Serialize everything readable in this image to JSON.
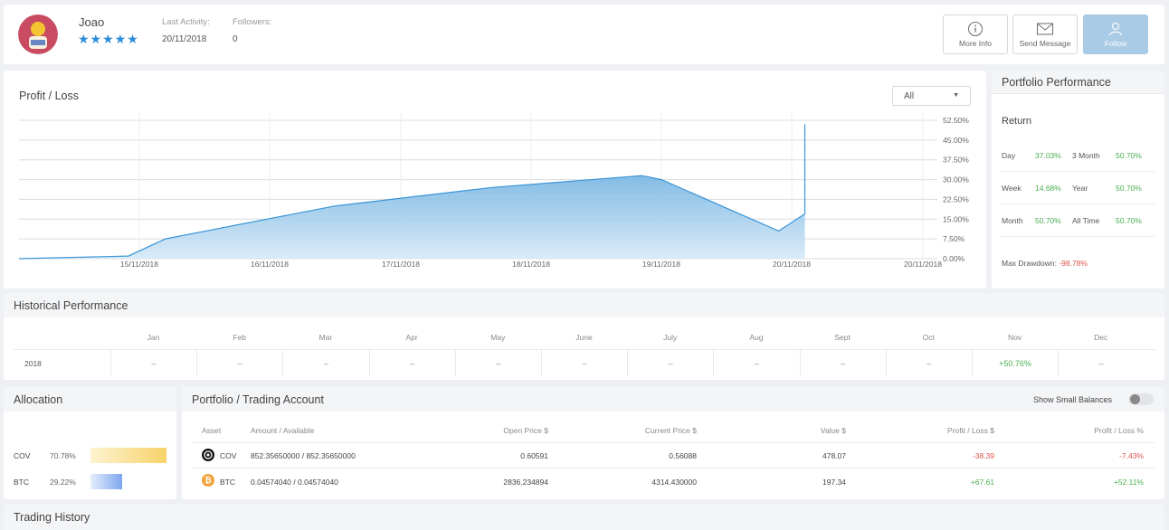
{
  "header": {
    "username": "Joao",
    "stars": "★★★★★",
    "last_activity_label": "Last Activity:",
    "last_activity_value": "20/11/2018",
    "followers_label": "Followers:",
    "followers_value": "0",
    "buttons": {
      "more_info": "More Info",
      "send_message": "Send Message",
      "follow": "Follow"
    }
  },
  "profit_loss": {
    "title": "Profit / Loss",
    "filter_value": "All"
  },
  "chart_data": {
    "type": "area",
    "title": "Profit / Loss",
    "x_ticks": [
      "15/11/2018",
      "16/11/2018",
      "17/11/2018",
      "18/11/2018",
      "19/11/2018",
      "20/11/2018",
      "20/11/2018"
    ],
    "y_ticks": [
      "52.50%",
      "45.00%",
      "37.50%",
      "30.00%",
      "22.50%",
      "15.00%",
      "7.50%",
      "0.00%"
    ],
    "ylim": [
      0,
      52.5
    ],
    "grid": true,
    "series": [
      {
        "color": "#3a95d6",
        "points": [
          [
            0,
            0.0
          ],
          [
            0.91,
            1.0
          ],
          [
            1.2,
            7.5
          ],
          [
            2.5,
            20.0
          ],
          [
            3.7,
            27.0
          ],
          [
            4.85,
            31.5
          ],
          [
            5.0,
            30.0
          ],
          [
            5.9,
            10.5
          ],
          [
            6.1,
            17.0
          ],
          [
            6.1,
            51.0
          ]
        ]
      }
    ]
  },
  "portfolio_performance": {
    "title": "Portfolio Performance",
    "return_label": "Return",
    "rows": [
      {
        "l1": "Day",
        "v1": "37.03%",
        "l2": "3 Month",
        "v2": "50.70%"
      },
      {
        "l1": "Week",
        "v1": "14.68%",
        "l2": "Year",
        "v2": "50.70%"
      },
      {
        "l1": "Month",
        "v1": "50.70%",
        "l2": "All Time",
        "v2": "50.70%"
      }
    ],
    "max_drawdown_label": "Max Drawdown:",
    "max_drawdown_value": "-98.78%"
  },
  "historical": {
    "title": "Historical Performance",
    "months": [
      "Jan",
      "Feb",
      "Mar",
      "Apr",
      "May",
      "June",
      "July",
      "Aug",
      "Sept",
      "Oct",
      "Nov",
      "Dec"
    ],
    "year": "2018",
    "values": [
      "–",
      "–",
      "–",
      "–",
      "–",
      "–",
      "–",
      "–",
      "–",
      "–",
      "+50.76%",
      "–"
    ]
  },
  "allocation": {
    "title": "Allocation",
    "items": [
      {
        "name": "COV",
        "pct": "70.78%",
        "value": 70.78,
        "color_from": "#fdf3d0",
        "color_to": "#f7d36a"
      },
      {
        "name": "BTC",
        "pct": "29.22%",
        "value": 29.22,
        "color_from": "#e6eefc",
        "color_to": "#7ea6ef"
      }
    ]
  },
  "trading_account": {
    "title": "Portfolio / Trading Account",
    "toggle_label": "Show Small Balances",
    "headers": [
      "Asset",
      "Amount / Available",
      "Open Price $",
      "Current Price $",
      "Value $",
      "Profit / Loss $",
      "Profit / Loss %"
    ],
    "rows": [
      {
        "asset": "COV",
        "icon": "cov-coin-icon",
        "amount": "852.35650000 / 852.35650000",
        "open": "0.60591",
        "current": "0.56088",
        "value": "478.07",
        "pl": "-38.39",
        "plpct": "-7.43%"
      },
      {
        "asset": "BTC",
        "icon": "btc-coin-icon",
        "amount": "0.04574040 / 0.04574040",
        "open": "2836.234894",
        "current": "4314.430000",
        "value": "197.34",
        "pl": "+67.61",
        "plpct": "+52.11%"
      }
    ]
  },
  "trading_history": {
    "title": "Trading History"
  }
}
